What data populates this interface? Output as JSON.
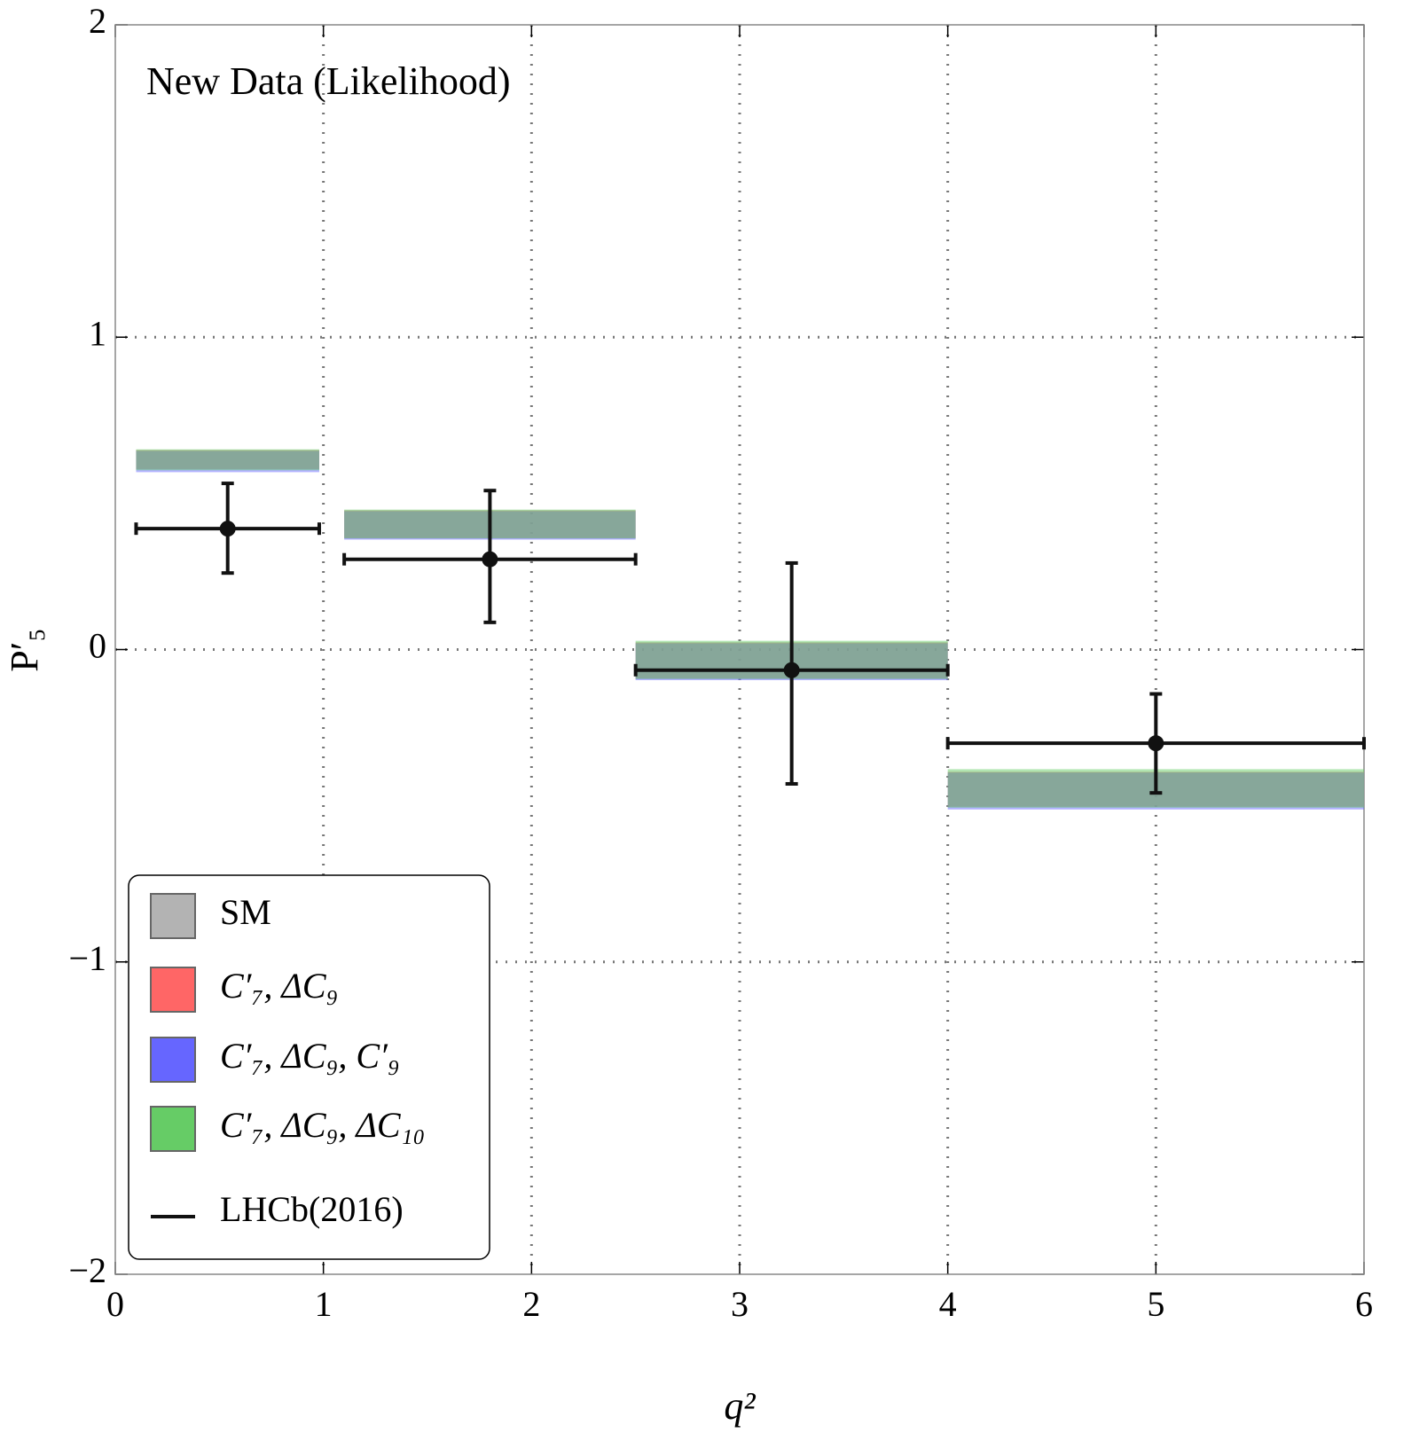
{
  "chart_data": {
    "type": "band_errorbar",
    "annotation": "New Data (Likelihood)",
    "x_label": "q²",
    "y_label": "P′₅",
    "xlim": [
      0,
      6
    ],
    "xticks": [
      0,
      1,
      2,
      3,
      4,
      5,
      6
    ],
    "ylim": [
      -2,
      2
    ],
    "yticks": [
      -2,
      -1,
      0,
      1,
      2
    ],
    "grid": true,
    "legend": "lower left",
    "bins": [
      [
        0.1,
        0.98
      ],
      [
        1.1,
        2.5
      ],
      [
        2.5,
        4
      ],
      [
        4,
        6
      ]
    ],
    "series": [
      {
        "name": "SM",
        "color": "#b3b3b3",
        "low": [
          0.577,
          0.355,
          -0.095,
          -0.505
        ],
        "high": [
          0.639,
          0.446,
          0.024,
          -0.391
        ]
      },
      {
        "name": "C′₇, ΔC₉",
        "color": "#ff6666",
        "low": [
          0.578,
          0.357,
          -0.092,
          -0.503
        ],
        "high": [
          0.638,
          0.445,
          0.022,
          -0.392
        ]
      },
      {
        "name": "C′₇, ΔC₉, C′₉",
        "color": "#6666ff",
        "low": [
          0.568,
          0.352,
          -0.098,
          -0.512
        ],
        "high": [
          0.636,
          0.443,
          0.02,
          -0.394
        ]
      },
      {
        "name": "C′₇, ΔC₉, ΔC₁₀",
        "color": "#66cc66",
        "low": [
          0.574,
          0.356,
          -0.094,
          -0.506
        ],
        "high": [
          0.641,
          0.448,
          0.028,
          -0.383
        ]
      }
    ],
    "measurement": {
      "name": "LHCb(2016)",
      "color": "#111111",
      "x": [
        0.54,
        1.8,
        3.25,
        5.0
      ],
      "x_low": [
        0.1,
        1.1,
        2.5,
        4
      ],
      "x_high": [
        0.98,
        2.5,
        4,
        6
      ],
      "values": [
        0.387,
        0.289,
        -0.066,
        -0.3
      ],
      "err_minus": [
        0.142,
        0.202,
        0.364,
        0.159
      ],
      "err_plus": [
        0.145,
        0.22,
        0.343,
        0.158
      ]
    }
  }
}
